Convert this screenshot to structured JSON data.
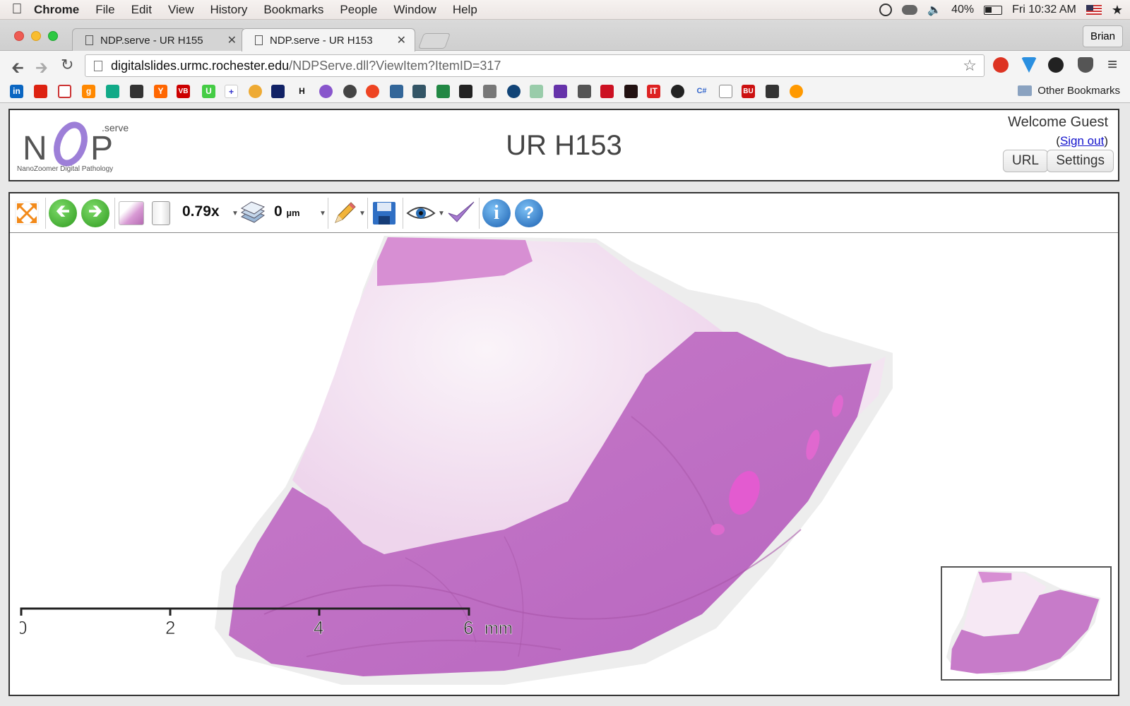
{
  "menubar": {
    "items": [
      "Chrome",
      "File",
      "Edit",
      "View",
      "History",
      "Bookmarks",
      "People",
      "Window",
      "Help"
    ],
    "battery": "40%",
    "clock": "Fri 10:32 AM"
  },
  "tabs": [
    {
      "title": "NDP.serve - UR H155"
    },
    {
      "title": "NDP.serve - UR H153"
    }
  ],
  "profile_name": "Brian",
  "address": {
    "host": "digitalslides.urmc.rochester.edu",
    "path": "/NDPServe.dll?ViewItem?ItemID=317"
  },
  "bookmarks": {
    "other_label": "Other Bookmarks"
  },
  "ndp": {
    "logo_serve": ".serve",
    "logo_caption": "NanoZoomer Digital Pathology",
    "title": "UR H153",
    "welcome": "Welcome Guest",
    "signout": "Sign out",
    "url_button": "URL",
    "settings_button": "Settings"
  },
  "viewer": {
    "zoom": "0.79x",
    "focus_value": "0",
    "focus_unit": "µm",
    "scale_ticks": [
      "0",
      "2",
      "4",
      "6"
    ],
    "scale_unit": "mm"
  },
  "colors": {
    "tissue_dense": "#c77bc9",
    "tissue_light": "#f3e4f1",
    "logo_purple": "#9d7fd8"
  }
}
